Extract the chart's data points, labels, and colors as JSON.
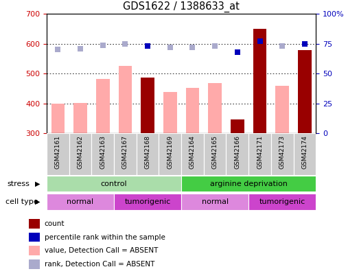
{
  "title": "GDS1622 / 1388633_at",
  "samples": [
    "GSM42161",
    "GSM42162",
    "GSM42163",
    "GSM42167",
    "GSM42168",
    "GSM42169",
    "GSM42164",
    "GSM42165",
    "GSM42166",
    "GSM42171",
    "GSM42173",
    "GSM42174"
  ],
  "bar_values": [
    400,
    402,
    482,
    525,
    487,
    438,
    452,
    468,
    347,
    650,
    459,
    578
  ],
  "bar_is_dark": [
    false,
    false,
    false,
    false,
    true,
    false,
    false,
    false,
    true,
    true,
    false,
    true
  ],
  "rank_values": [
    70,
    71,
    74,
    75,
    73,
    72,
    72,
    73,
    68,
    77,
    73,
    75
  ],
  "rank_is_dark": [
    false,
    false,
    false,
    false,
    true,
    false,
    false,
    false,
    true,
    true,
    false,
    true
  ],
  "ylim_left": [
    300,
    700
  ],
  "ylim_right": [
    0,
    100
  ],
  "yticks_left": [
    300,
    400,
    500,
    600,
    700
  ],
  "yticks_right": [
    0,
    25,
    50,
    75,
    100
  ],
  "stress_groups": [
    {
      "label": "control",
      "start": 0,
      "end": 6,
      "color": "#aaddaa"
    },
    {
      "label": "arginine deprivation",
      "start": 6,
      "end": 12,
      "color": "#44cc44"
    }
  ],
  "cell_type_groups": [
    {
      "label": "normal",
      "start": 0,
      "end": 3,
      "color": "#dd88dd"
    },
    {
      "label": "tumorigenic",
      "start": 3,
      "end": 6,
      "color": "#cc44cc"
    },
    {
      "label": "normal",
      "start": 6,
      "end": 9,
      "color": "#dd88dd"
    },
    {
      "label": "tumorigenic",
      "start": 9,
      "end": 12,
      "color": "#cc44cc"
    }
  ],
  "bar_color_dark": "#990000",
  "bar_color_light": "#ffaaaa",
  "rank_color_dark": "#0000bb",
  "rank_color_light": "#aaaacc",
  "background_color": "#ffffff",
  "plot_bg_color": "#ffffff",
  "tick_label_color_left": "#cc0000",
  "tick_label_color_right": "#0000bb",
  "legend_items": [
    {
      "color": "#990000",
      "label": "count"
    },
    {
      "color": "#0000bb",
      "label": "percentile rank within the sample"
    },
    {
      "color": "#ffaaaa",
      "label": "value, Detection Call = ABSENT"
    },
    {
      "color": "#aaaacc",
      "label": "rank, Detection Call = ABSENT"
    }
  ],
  "xticklabel_bg": "#cccccc"
}
